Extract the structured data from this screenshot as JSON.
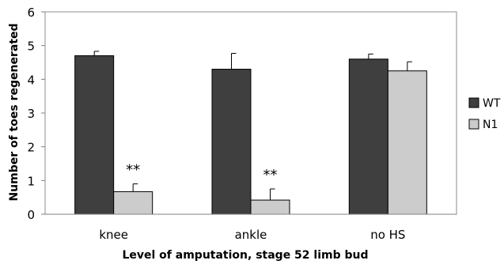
{
  "chart_data": {
    "type": "bar",
    "title": "",
    "xlabel": "Level of amputation, stage 52 limb bud",
    "ylabel": "Number of toes regenerated",
    "categories": [
      "knee",
      "ankle",
      "no HS"
    ],
    "ylim": [
      0,
      6
    ],
    "yticks": [
      0,
      1,
      2,
      3,
      4,
      5,
      6
    ],
    "grid": false,
    "legend_position": "right",
    "series": [
      {
        "name": "WT",
        "color": "#3f3f3f",
        "values": [
          4.7,
          4.3,
          4.6
        ],
        "errors": [
          0.13,
          0.47,
          0.15
        ],
        "annotations": [
          "",
          "",
          ""
        ]
      },
      {
        "name": "N1",
        "color": "#cccccc",
        "values": [
          0.67,
          0.42,
          4.25
        ],
        "errors": [
          0.23,
          0.33,
          0.27
        ],
        "annotations": [
          "**",
          "**",
          ""
        ]
      }
    ]
  }
}
